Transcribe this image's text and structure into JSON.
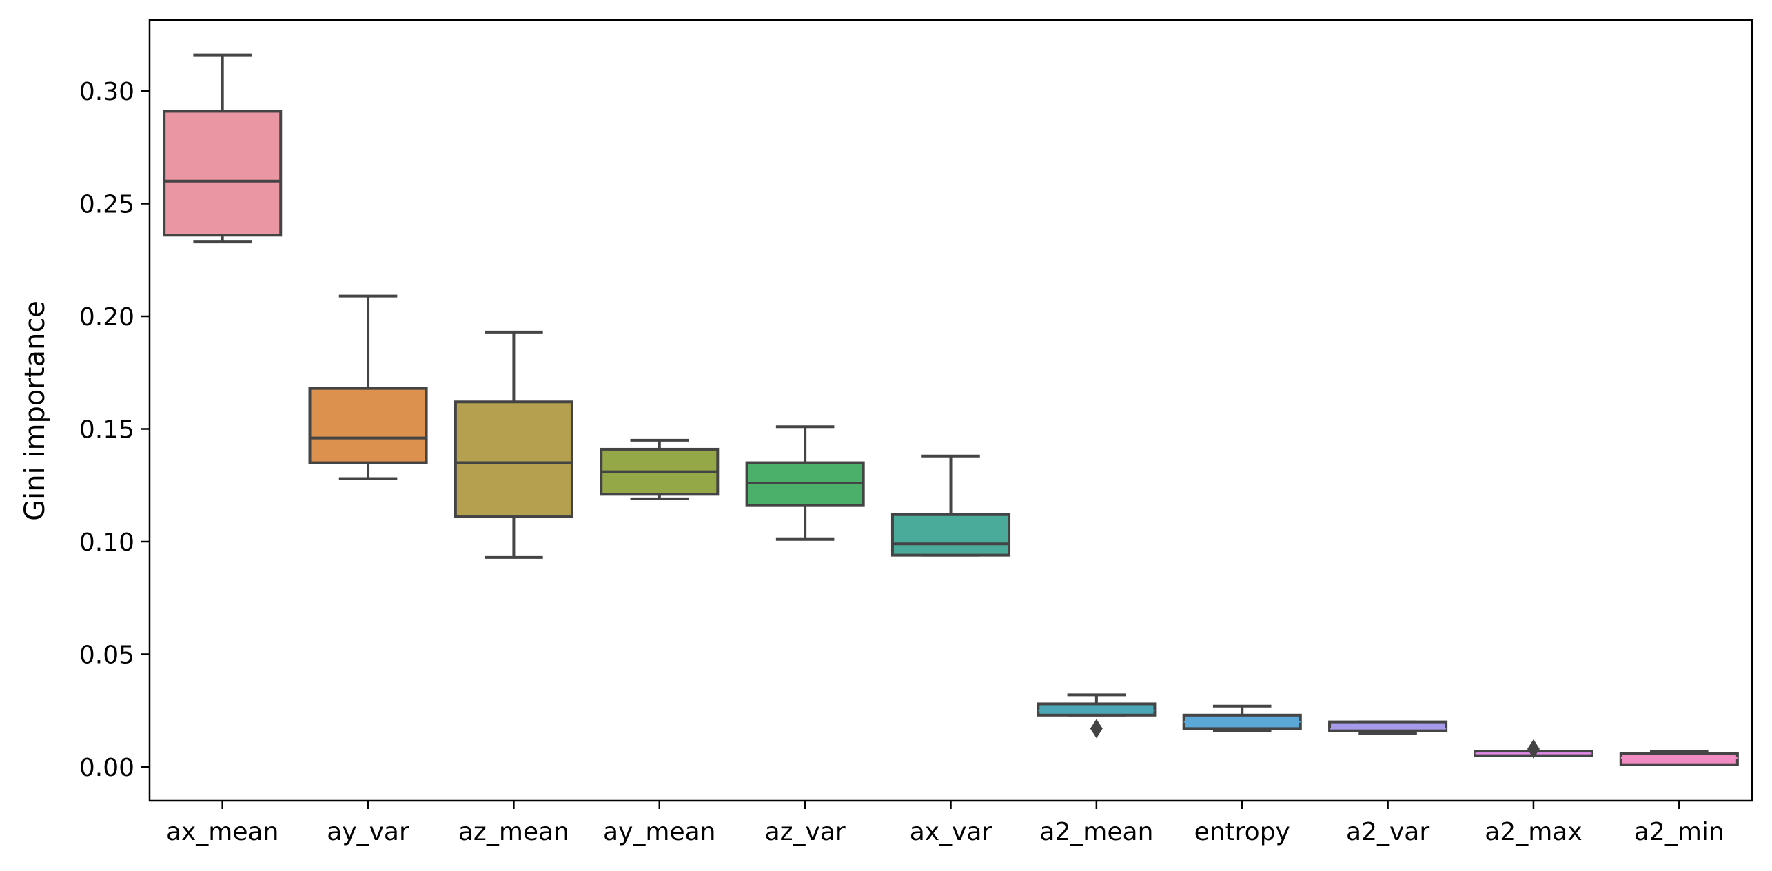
{
  "chart_data": {
    "type": "box",
    "title": "",
    "xlabel": "",
    "ylabel": "Gini importance",
    "ylim": [
      -0.015,
      0.333
    ],
    "y_ticks": [
      0.0,
      0.05,
      0.1,
      0.15,
      0.2,
      0.25,
      0.3
    ],
    "y_tick_labels": [
      "0.00",
      "0.05",
      "0.10",
      "0.15",
      "0.20",
      "0.25",
      "0.30"
    ],
    "grid": false,
    "legend": "none",
    "edge_color": "#444444",
    "categories": [
      "ax_mean",
      "ay_var",
      "az_mean",
      "ay_mean",
      "az_var",
      "ax_var",
      "a2_mean",
      "entropy",
      "a2_var",
      "a2_max",
      "a2_min"
    ],
    "boxes": [
      {
        "label": "ax_mean",
        "color": "#ea96a3",
        "whisker_low": 0.233,
        "q1": 0.236,
        "median": 0.26,
        "q3": 0.291,
        "whisker_high": 0.316,
        "outliers": []
      },
      {
        "label": "ay_var",
        "color": "#dc924e",
        "whisker_low": 0.128,
        "q1": 0.135,
        "median": 0.146,
        "q3": 0.168,
        "whisker_high": 0.209,
        "outliers": []
      },
      {
        "label": "az_mean",
        "color": "#b4a04e",
        "whisker_low": 0.093,
        "q1": 0.111,
        "median": 0.135,
        "q3": 0.162,
        "whisker_high": 0.193,
        "outliers": []
      },
      {
        "label": "ay_mean",
        "color": "#95a848",
        "whisker_low": 0.119,
        "q1": 0.121,
        "median": 0.131,
        "q3": 0.141,
        "whisker_high": 0.145,
        "outliers": []
      },
      {
        "label": "az_var",
        "color": "#4bb06a",
        "whisker_low": 0.101,
        "q1": 0.116,
        "median": 0.126,
        "q3": 0.135,
        "whisker_high": 0.151,
        "outliers": []
      },
      {
        "label": "ax_var",
        "color": "#4aab9a",
        "whisker_low": 0.094,
        "q1": 0.094,
        "median": 0.099,
        "q3": 0.112,
        "whisker_high": 0.138,
        "outliers": []
      },
      {
        "label": "a2_mean",
        "color": "#4ba7b6",
        "whisker_low": 0.023,
        "q1": 0.023,
        "median": 0.025,
        "q3": 0.028,
        "whisker_high": 0.032,
        "outliers": [
          0.017
        ]
      },
      {
        "label": "entropy",
        "color": "#5aa7d8",
        "whisker_low": 0.016,
        "q1": 0.017,
        "median": 0.02,
        "q3": 0.023,
        "whisker_high": 0.027,
        "outliers": []
      },
      {
        "label": "a2_var",
        "color": "#a69bea",
        "whisker_low": 0.015,
        "q1": 0.016,
        "median": 0.017,
        "q3": 0.02,
        "whisker_high": 0.02,
        "outliers": []
      },
      {
        "label": "a2_max",
        "color": "#e28ae9",
        "whisker_low": 0.005,
        "q1": 0.005,
        "median": 0.006,
        "q3": 0.007,
        "whisker_high": 0.007,
        "outliers": [
          0.008
        ]
      },
      {
        "label": "a2_min",
        "color": "#f08cc3",
        "whisker_low": 0.001,
        "q1": 0.001,
        "median": 0.004,
        "q3": 0.006,
        "whisker_high": 0.007,
        "outliers": []
      }
    ]
  }
}
